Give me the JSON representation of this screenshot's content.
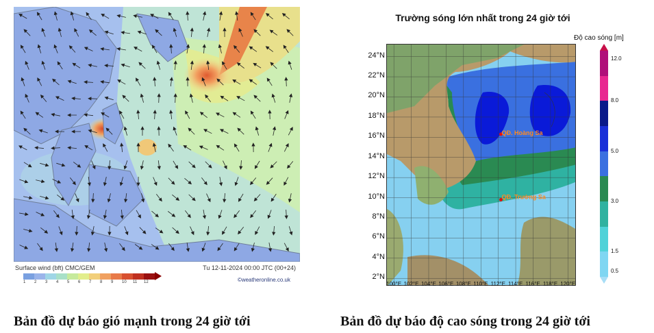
{
  "wind_map": {
    "footer_left": "Surface wind (bft)   CMC/GEM",
    "footer_right": "Tu 12-11-2024 00:00 JTC (00+24)",
    "credit": "©weatheronline.co.uk",
    "scale_ticks": [
      "1",
      "2",
      "3",
      "4",
      "5",
      "6",
      "7",
      "8",
      "9",
      "10",
      "11",
      "12"
    ],
    "scale_colors": [
      "#7aa0e0",
      "#9ab4ea",
      "#9fd6e6",
      "#a8e0c8",
      "#c6ea9c",
      "#e2ee8c",
      "#f2cf7a",
      "#f0a060",
      "#e87a48",
      "#d85030",
      "#c03020",
      "#9a1010"
    ]
  },
  "wave_map": {
    "title": "Trường sóng lớn nhất trong 24 giờ tới",
    "colorbar_title": "Độ cao sóng [m]",
    "colorbar_ticks": [
      "12.0",
      "8.0",
      "5.0",
      "3.0",
      "1.5",
      "0.5"
    ],
    "colorbar_colors": [
      "#b0107a",
      "#e82890",
      "#0a1a8a",
      "#1a30d8",
      "#3a70e0",
      "#2a8a52",
      "#30b2a0",
      "#50d2d8",
      "#7fd6f2"
    ],
    "lat_labels": [
      "24°N",
      "22°N",
      "20°N",
      "18°N",
      "16°N",
      "14°N",
      "12°N",
      "10°N",
      "8°N",
      "6°N",
      "4°N",
      "2°N"
    ],
    "lon_labels": [
      "100°E",
      "102°E",
      "104°E",
      "106°E",
      "108°E",
      "110°E",
      "112°E",
      "114°E",
      "116°E",
      "118°E",
      "120°E"
    ],
    "markers": [
      {
        "label": "QĐ. Hoàng Sa"
      },
      {
        "label": "QĐ. Trường Sa"
      }
    ]
  },
  "captions": {
    "left": "Bản đồ dự báo gió mạnh trong 24 giờ tới",
    "right": "Bản đồ dự báo độ cao sóng trong 24 giờ tới"
  }
}
